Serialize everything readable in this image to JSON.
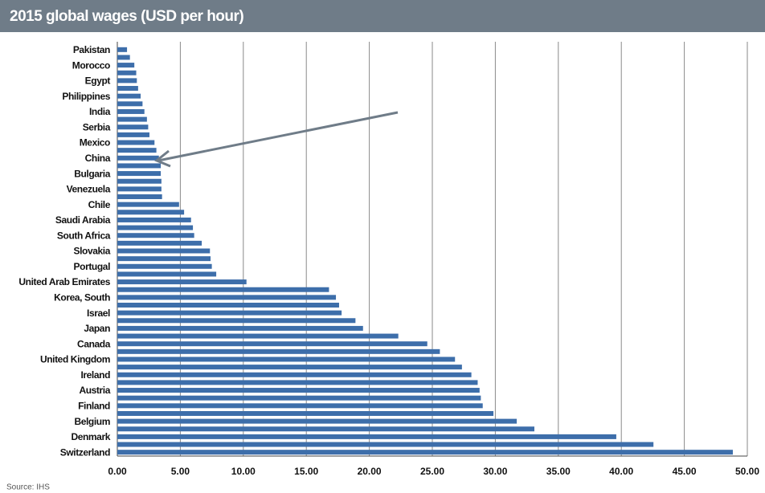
{
  "chart_data": {
    "type": "bar",
    "orientation": "horizontal",
    "title": "2015 global wages (USD per hour)",
    "source": "Source: IHS",
    "color": "#3d6eaa",
    "grid": true,
    "categories": [
      "Pakistan",
      null,
      "Morocco",
      null,
      "Egypt",
      null,
      "Philippines",
      null,
      "India",
      null,
      "Serbia",
      null,
      "Mexico",
      null,
      "China",
      null,
      "Bulgaria",
      null,
      "Venezuela",
      null,
      "Chile",
      null,
      "Saudi Arabia",
      null,
      "South Africa",
      null,
      "Slovakia",
      null,
      "Portugal",
      null,
      "United Arab Emirates",
      null,
      "Korea, South",
      null,
      "Israel",
      null,
      "Japan",
      null,
      "Canada",
      null,
      "United Kingdom",
      null,
      "Ireland",
      null,
      "Austria",
      null,
      "Finland",
      null,
      "Belgium",
      null,
      "Denmark",
      null,
      "Switzerland"
    ],
    "values": [
      0.77,
      1.0,
      1.35,
      1.5,
      1.55,
      1.65,
      1.85,
      2.0,
      2.15,
      2.35,
      2.45,
      2.55,
      2.95,
      3.1,
      3.3,
      3.45,
      3.45,
      3.5,
      3.5,
      3.55,
      4.9,
      5.3,
      5.85,
      6.0,
      6.1,
      6.7,
      7.35,
      7.4,
      7.5,
      7.85,
      10.25,
      16.8,
      17.35,
      17.6,
      17.8,
      18.9,
      19.5,
      22.3,
      24.6,
      25.6,
      26.8,
      27.35,
      28.1,
      28.6,
      28.75,
      28.85,
      29.0,
      29.85,
      31.7,
      33.1,
      39.6,
      42.55,
      48.85
    ],
    "xlim": [
      0,
      50
    ],
    "xticks": [
      {
        "value": 0,
        "label": "0.00"
      },
      {
        "value": 5,
        "label": "5.00"
      },
      {
        "value": 10,
        "label": "10.00"
      },
      {
        "value": 15,
        "label": "15.00"
      },
      {
        "value": 20,
        "label": "20.00"
      },
      {
        "value": 25,
        "label": "25.00"
      },
      {
        "value": 30,
        "label": "30.00"
      },
      {
        "value": 35,
        "label": "35.00"
      },
      {
        "value": 40,
        "label": "40.00"
      },
      {
        "value": 45,
        "label": "45.00"
      },
      {
        "value": 50,
        "label": "50.00"
      }
    ]
  }
}
